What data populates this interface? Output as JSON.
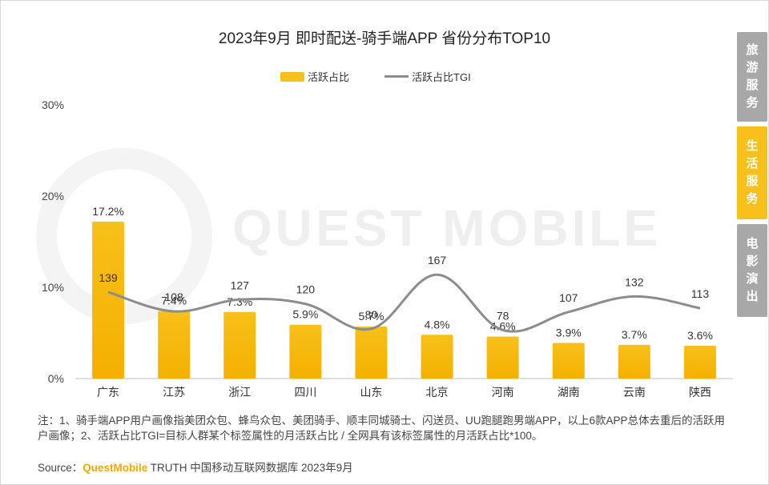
{
  "title": "2023年9月 即时配送-骑手端APP 省份分布TOP10",
  "legend": {
    "bar_label": "活跃占比",
    "line_label": "活跃占比TGI"
  },
  "watermark": "QUEST MOBILE",
  "side_tabs": [
    {
      "label": "旅游服务",
      "active": false
    },
    {
      "label": "生活服务",
      "active": true
    },
    {
      "label": "电影演出",
      "active": false
    }
  ],
  "note": "注：1、骑手端APP用户画像指美团众包、蜂鸟众包、美团骑手、顺丰同城骑士、闪送员、UU跑腿跑男端APP，以上6款APP总体去重后的活跃用户画像；2、活跃占比TGI=目标人群某个标签属性的月活跃占比 / 全网具有该标签属性的月活跃占比*100。",
  "source": {
    "prefix": "Source：",
    "brand": "QuestMobile",
    "suffix": " TRUTH 中国移动互联网数据库 2023年9月"
  },
  "colors": {
    "bar": "#f7c01a",
    "bar_dark": "#f5b000",
    "line": "#8c8c8c",
    "active_tab": "#f7c01a",
    "inactive_tab": "#a8a8a8"
  },
  "chart_data": {
    "type": "bar",
    "title": "2023年9月 即时配送-骑手端APP 省份分布TOP10",
    "categories": [
      "广东",
      "江苏",
      "浙江",
      "四川",
      "山东",
      "北京",
      "河南",
      "湖南",
      "云南",
      "陕西"
    ],
    "series": [
      {
        "name": "活跃占比",
        "type": "bar",
        "values": [
          17.2,
          7.4,
          7.3,
          5.9,
          5.7,
          4.8,
          4.6,
          3.9,
          3.7,
          3.6
        ],
        "labels": [
          "17.2%",
          "7.4%",
          "7.3%",
          "5.9%",
          "5.7%",
          "4.8%",
          "4.6%",
          "3.9%",
          "3.7%",
          "3.6%"
        ]
      },
      {
        "name": "活跃占比TGI",
        "type": "line",
        "values": [
          139,
          108,
          127,
          120,
          80,
          167,
          78,
          107,
          132,
          113
        ]
      }
    ],
    "yticks": [
      "0%",
      "10%",
      "20%",
      "30%"
    ],
    "ylim": [
      0,
      30
    ],
    "line_ylim": [
      0,
      440
    ],
    "legend_position": "top-center"
  }
}
